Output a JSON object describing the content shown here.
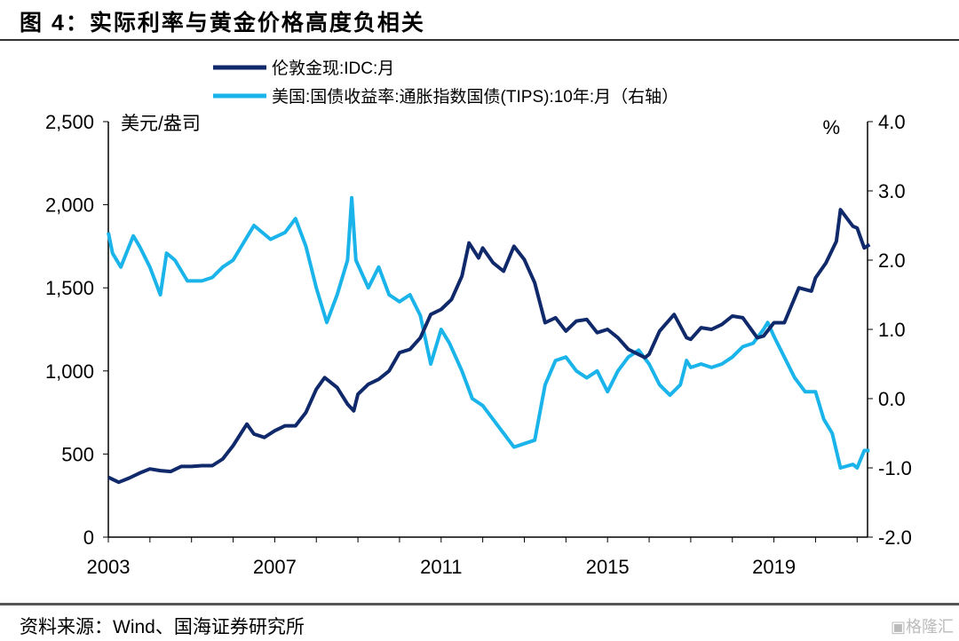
{
  "title": "图 4：实际利率与黄金价格高度负相关",
  "source": "资料来源：Wind、国海证券研究所",
  "watermark": "格隆汇",
  "chart_data": {
    "type": "line",
    "left_unit": "美元/盎司",
    "right_unit": "%",
    "left_ylim": [
      0,
      2500
    ],
    "right_ylim": [
      -2.0,
      4.0
    ],
    "left_ticks": [
      "2,500",
      "2,000",
      "1,500",
      "1,000",
      "500",
      "0"
    ],
    "left_tick_values": [
      2500,
      2000,
      1500,
      1000,
      500,
      0
    ],
    "right_ticks": [
      "4.0",
      "3.0",
      "2.0",
      "1.0",
      "0.0",
      "-1.0",
      "-2.0"
    ],
    "right_tick_values": [
      4,
      3,
      2,
      1,
      0,
      -1,
      -2
    ],
    "x_ticks": [
      "2003",
      "2007",
      "2011",
      "2015",
      "2019"
    ],
    "x_tick_values": [
      2003,
      2007,
      2011,
      2015,
      2019
    ],
    "xlim": [
      2003,
      2021.25
    ],
    "grid": false,
    "legend_placement": "top-center",
    "series": [
      {
        "name": "伦敦金现:IDC:月",
        "axis": "left",
        "color": "#10296b",
        "x": [
          2003.0,
          2003.25,
          2003.5,
          2003.75,
          2004.0,
          2004.25,
          2004.5,
          2004.75,
          2005.0,
          2005.25,
          2005.5,
          2005.75,
          2006.0,
          2006.33,
          2006.5,
          2006.75,
          2007.0,
          2007.25,
          2007.5,
          2007.75,
          2008.0,
          2008.2,
          2008.5,
          2008.75,
          2008.9,
          2009.0,
          2009.25,
          2009.5,
          2009.75,
          2010.0,
          2010.25,
          2010.5,
          2010.75,
          2011.0,
          2011.25,
          2011.5,
          2011.67,
          2011.9,
          2012.0,
          2012.25,
          2012.5,
          2012.75,
          2013.0,
          2013.25,
          2013.5,
          2013.75,
          2014.0,
          2014.25,
          2014.5,
          2014.75,
          2015.0,
          2015.25,
          2015.5,
          2015.9,
          2016.0,
          2016.25,
          2016.6,
          2016.9,
          2017.0,
          2017.25,
          2017.5,
          2017.75,
          2018.0,
          2018.25,
          2018.6,
          2018.75,
          2019.0,
          2019.25,
          2019.6,
          2019.9,
          2020.0,
          2020.25,
          2020.5,
          2020.6,
          2020.9,
          2021.0,
          2021.17,
          2021.3
        ],
        "values": [
          360,
          330,
          355,
          385,
          410,
          400,
          395,
          425,
          425,
          430,
          430,
          470,
          550,
          680,
          620,
          600,
          640,
          670,
          670,
          750,
          890,
          960,
          900,
          800,
          760,
          860,
          920,
          950,
          1000,
          1110,
          1130,
          1200,
          1340,
          1370,
          1430,
          1570,
          1770,
          1680,
          1740,
          1650,
          1600,
          1750,
          1670,
          1530,
          1290,
          1320,
          1240,
          1300,
          1310,
          1230,
          1250,
          1200,
          1130,
          1080,
          1100,
          1240,
          1340,
          1200,
          1190,
          1260,
          1250,
          1280,
          1330,
          1320,
          1200,
          1210,
          1290,
          1290,
          1500,
          1480,
          1560,
          1650,
          1780,
          1970,
          1870,
          1860,
          1740,
          1760
        ]
      },
      {
        "name": "美国:国债收益率:通胀指数国债(TIPS):10年:月（右轴）",
        "axis": "right",
        "color": "#1ab4ea",
        "x": [
          2003.0,
          2003.1,
          2003.3,
          2003.5,
          2003.6,
          2003.75,
          2004.0,
          2004.25,
          2004.4,
          2004.6,
          2004.9,
          2005.25,
          2005.5,
          2005.75,
          2006.0,
          2006.5,
          2006.9,
          2007.25,
          2007.5,
          2007.75,
          2008.0,
          2008.25,
          2008.5,
          2008.75,
          2008.85,
          2008.95,
          2009.25,
          2009.5,
          2009.75,
          2010.0,
          2010.25,
          2010.5,
          2010.75,
          2011.0,
          2011.2,
          2011.5,
          2011.75,
          2012.0,
          2012.25,
          2012.5,
          2012.75,
          2013.0,
          2013.25,
          2013.5,
          2013.75,
          2014.0,
          2014.25,
          2014.5,
          2014.75,
          2015.0,
          2015.25,
          2015.5,
          2015.75,
          2016.0,
          2016.25,
          2016.5,
          2016.75,
          2016.9,
          2017.0,
          2017.25,
          2017.5,
          2017.75,
          2018.0,
          2018.25,
          2018.5,
          2018.75,
          2018.85,
          2019.0,
          2019.25,
          2019.5,
          2019.75,
          2020.0,
          2020.2,
          2020.4,
          2020.6,
          2020.9,
          2021.0,
          2021.17,
          2021.3
        ],
        "values": [
          2.4,
          2.1,
          1.9,
          2.2,
          2.35,
          2.2,
          1.9,
          1.5,
          2.1,
          2.0,
          1.7,
          1.7,
          1.75,
          1.9,
          2.0,
          2.5,
          2.3,
          2.4,
          2.6,
          2.2,
          1.6,
          1.1,
          1.5,
          2.0,
          2.9,
          2.0,
          1.6,
          1.9,
          1.5,
          1.4,
          1.5,
          1.2,
          0.5,
          1.0,
          0.8,
          0.4,
          0.0,
          -0.1,
          -0.3,
          -0.5,
          -0.7,
          -0.65,
          -0.6,
          0.2,
          0.55,
          0.6,
          0.4,
          0.3,
          0.4,
          0.1,
          0.4,
          0.6,
          0.7,
          0.5,
          0.2,
          0.05,
          0.2,
          0.55,
          0.45,
          0.5,
          0.45,
          0.5,
          0.6,
          0.75,
          0.8,
          1.0,
          1.1,
          0.9,
          0.6,
          0.3,
          0.1,
          0.1,
          -0.3,
          -0.5,
          -1.0,
          -0.95,
          -1.0,
          -0.75,
          -0.75
        ]
      }
    ]
  }
}
